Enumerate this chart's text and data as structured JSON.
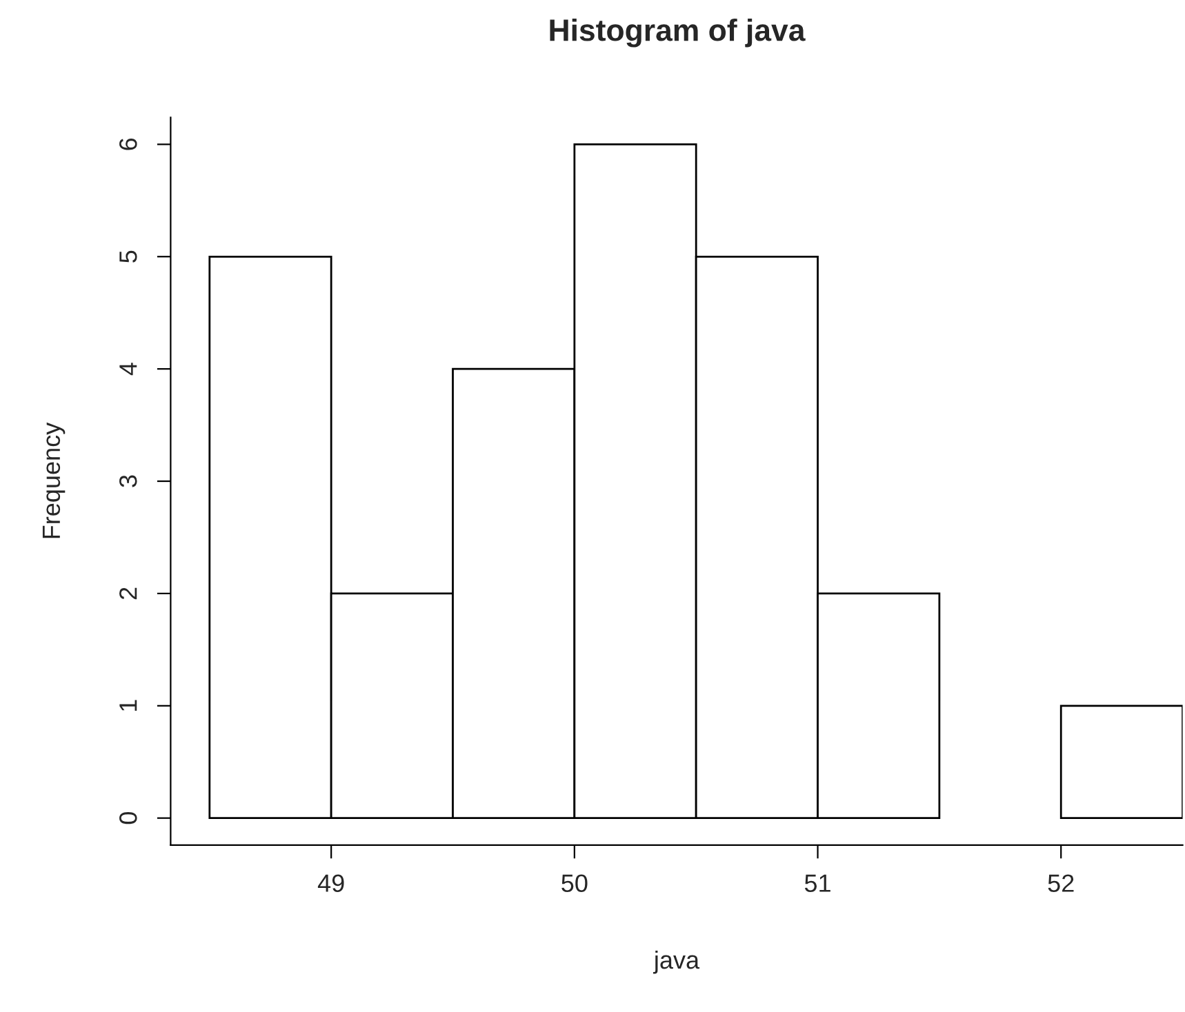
{
  "chart_data": {
    "type": "histogram",
    "title": "Histogram of java",
    "xlabel": "java",
    "ylabel": "Frequency",
    "bins": [
      48.5,
      49,
      49.5,
      50,
      50.5,
      51,
      51.5,
      52,
      52.5
    ],
    "values": [
      5,
      2,
      4,
      6,
      5,
      2,
      0,
      1
    ],
    "color": "#ffffff",
    "xlim": [
      48.34,
      52.5
    ],
    "xticks": [
      49,
      50,
      51,
      52
    ],
    "ylim": [
      -0.24,
      6.24
    ],
    "yticks": [
      0,
      1,
      2,
      3,
      4,
      5,
      6
    ],
    "grid": false
  }
}
